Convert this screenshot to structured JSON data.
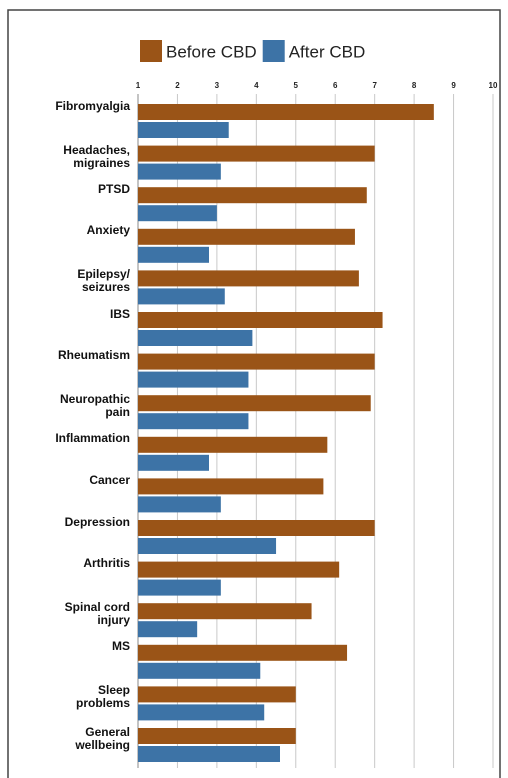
{
  "chart_data": {
    "type": "bar",
    "orientation": "horizontal",
    "categories": [
      "Fibromyalgia",
      "Headaches,\nmigraines",
      "PTSD",
      "Anxiety",
      "Epilepsy/\nseizures",
      "IBS",
      "Rheumatism",
      "Neuropathic\npain",
      "Inflammation",
      "Cancer",
      "Depression",
      "Arthritis",
      "Spinal cord\ninjury",
      "MS",
      "Sleep\nproblems",
      "General\nwellbeing"
    ],
    "series": [
      {
        "name": "Before CBD",
        "color": "#9a5417",
        "values": [
          8.5,
          7.0,
          6.8,
          6.5,
          6.6,
          7.2,
          7.0,
          6.9,
          5.8,
          5.7,
          7.0,
          6.1,
          5.4,
          6.3,
          5.0,
          5.0
        ]
      },
      {
        "name": "After CBD",
        "color": "#3d73a6",
        "values": [
          3.3,
          3.1,
          3.0,
          2.8,
          3.2,
          3.9,
          3.8,
          3.8,
          2.8,
          3.1,
          4.5,
          3.1,
          2.5,
          4.1,
          4.2,
          4.6
        ]
      }
    ],
    "xlim": [
      1,
      10
    ],
    "xticks": [
      1,
      2,
      3,
      4,
      5,
      6,
      7,
      8,
      9,
      10
    ],
    "grid": true,
    "legend": "top"
  }
}
